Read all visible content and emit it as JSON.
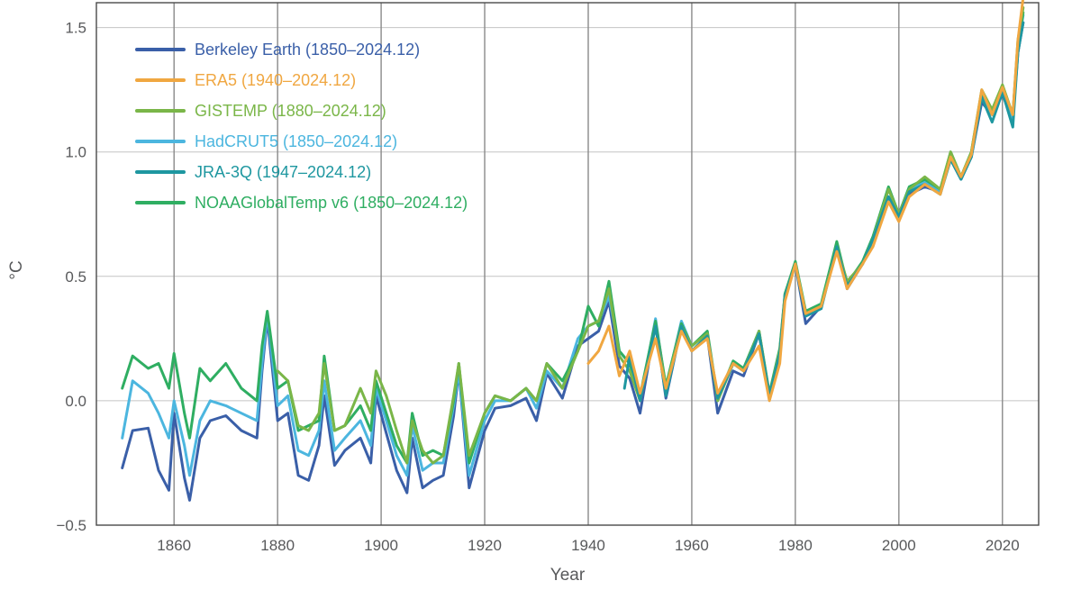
{
  "chart_data": {
    "type": "line",
    "xlabel": "Year",
    "ylabel": "°C",
    "xlim": [
      1845,
      2027
    ],
    "ylim": [
      -0.5,
      1.6
    ],
    "x_ticks": [
      {
        "value": 1860,
        "label": "1860"
      },
      {
        "value": 1880,
        "label": "1880"
      },
      {
        "value": 1900,
        "label": "1900"
      },
      {
        "value": 1920,
        "label": "1920"
      },
      {
        "value": 1940,
        "label": "1940"
      },
      {
        "value": 1960,
        "label": "1960"
      },
      {
        "value": 1980,
        "label": "1980"
      },
      {
        "value": 2000,
        "label": "2000"
      },
      {
        "value": 2020,
        "label": "2020"
      }
    ],
    "y_ticks": [
      {
        "value": -0.5,
        "label": "−0.5"
      },
      {
        "value": 0.0,
        "label": "0.0"
      },
      {
        "value": 0.5,
        "label": "0.5"
      },
      {
        "value": 1.0,
        "label": "1.0"
      },
      {
        "value": 1.5,
        "label": "1.5"
      }
    ],
    "grid": true,
    "legend_position": "top-left",
    "series": [
      {
        "name": "Berkeley Earth (1850–2024.12)",
        "color": "#3a5fa8",
        "x": [
          1850,
          1852,
          1855,
          1857,
          1859,
          1860,
          1862,
          1863,
          1865,
          1867,
          1870,
          1873,
          1876,
          1877,
          1878,
          1880,
          1882,
          1884,
          1886,
          1888,
          1889,
          1891,
          1893,
          1896,
          1898,
          1899,
          1901,
          1903,
          1905,
          1906,
          1908,
          1910,
          1912,
          1914,
          1915,
          1917,
          1920,
          1922,
          1925,
          1928,
          1930,
          1932,
          1935,
          1938,
          1940,
          1942,
          1944,
          1946,
          1948,
          1950,
          1953,
          1955,
          1958,
          1960,
          1963,
          1965,
          1968,
          1970,
          1973,
          1975,
          1977,
          1978,
          1980,
          1982,
          1985,
          1988,
          1990,
          1993,
          1995,
          1998,
          2000,
          2002,
          2005,
          2008,
          2010,
          2012,
          2014,
          2016,
          2018,
          2020,
          2022,
          2023,
          2024
        ],
        "y": [
          -0.27,
          -0.12,
          -0.11,
          -0.28,
          -0.36,
          -0.05,
          -0.31,
          -0.4,
          -0.15,
          -0.08,
          -0.06,
          -0.12,
          -0.15,
          0.12,
          0.33,
          -0.08,
          -0.05,
          -0.3,
          -0.32,
          -0.18,
          0.02,
          -0.26,
          -0.2,
          -0.15,
          -0.25,
          0.02,
          -0.13,
          -0.28,
          -0.37,
          -0.15,
          -0.35,
          -0.32,
          -0.3,
          -0.06,
          0.12,
          -0.35,
          -0.12,
          -0.03,
          -0.02,
          0.01,
          -0.08,
          0.11,
          0.01,
          0.22,
          0.25,
          0.28,
          0.4,
          0.14,
          0.09,
          -0.05,
          0.31,
          0.01,
          0.3,
          0.2,
          0.26,
          -0.05,
          0.12,
          0.1,
          0.27,
          0.02,
          0.19,
          0.43,
          0.55,
          0.31,
          0.38,
          0.62,
          0.45,
          0.55,
          0.65,
          0.82,
          0.74,
          0.83,
          0.86,
          0.84,
          0.97,
          0.89,
          0.98,
          1.2,
          1.15,
          1.23,
          1.13,
          1.4,
          1.52
        ]
      },
      {
        "name": "ERA5 (1940–2024.12)",
        "color": "#f0a741",
        "x": [
          1940,
          1942,
          1944,
          1946,
          1948,
          1950,
          1953,
          1955,
          1958,
          1960,
          1963,
          1965,
          1968,
          1970,
          1973,
          1975,
          1977,
          1978,
          1980,
          1982,
          1985,
          1988,
          1990,
          1993,
          1995,
          1998,
          2000,
          2002,
          2005,
          2008,
          2010,
          2012,
          2014,
          2016,
          2018,
          2020,
          2022,
          2023,
          2024
        ],
        "y": [
          0.15,
          0.2,
          0.3,
          0.1,
          0.2,
          0.03,
          0.25,
          0.05,
          0.28,
          0.2,
          0.25,
          0.03,
          0.15,
          0.12,
          0.22,
          0.0,
          0.15,
          0.4,
          0.55,
          0.35,
          0.38,
          0.6,
          0.45,
          0.55,
          0.62,
          0.8,
          0.72,
          0.82,
          0.87,
          0.83,
          0.98,
          0.9,
          0.99,
          1.25,
          1.15,
          1.26,
          1.15,
          1.45,
          1.62
        ]
      },
      {
        "name": "GISTEMP (1880–2024.12)",
        "color": "#7ab648",
        "x": [
          1880,
          1882,
          1884,
          1886,
          1888,
          1889,
          1891,
          1893,
          1896,
          1898,
          1899,
          1901,
          1903,
          1905,
          1906,
          1908,
          1910,
          1912,
          1914,
          1915,
          1917,
          1920,
          1922,
          1925,
          1928,
          1930,
          1932,
          1935,
          1938,
          1940,
          1942,
          1944,
          1946,
          1948,
          1950,
          1953,
          1955,
          1958,
          1960,
          1963,
          1965,
          1968,
          1970,
          1973,
          1975,
          1977,
          1978,
          1980,
          1982,
          1985,
          1988,
          1990,
          1993,
          1995,
          1998,
          2000,
          2002,
          2005,
          2008,
          2010,
          2012,
          2014,
          2016,
          2018,
          2020,
          2022,
          2023,
          2024
        ],
        "y": [
          0.12,
          0.08,
          -0.1,
          -0.12,
          -0.05,
          0.15,
          -0.12,
          -0.1,
          0.05,
          -0.05,
          0.12,
          0.02,
          -0.12,
          -0.25,
          -0.08,
          -0.2,
          -0.25,
          -0.22,
          0.02,
          0.15,
          -0.22,
          -0.05,
          0.02,
          0.0,
          0.05,
          0.0,
          0.15,
          0.05,
          0.2,
          0.3,
          0.32,
          0.45,
          0.18,
          0.12,
          0.0,
          0.3,
          0.05,
          0.3,
          0.22,
          0.27,
          0.0,
          0.15,
          0.12,
          0.28,
          0.02,
          0.2,
          0.42,
          0.55,
          0.35,
          0.38,
          0.62,
          0.48,
          0.55,
          0.65,
          0.85,
          0.75,
          0.85,
          0.9,
          0.85,
          1.0,
          0.9,
          1.0,
          1.25,
          1.17,
          1.27,
          1.15,
          1.45,
          1.58
        ]
      },
      {
        "name": "HadCRUT5 (1850–2024.12)",
        "color": "#4cb6df",
        "x": [
          1850,
          1852,
          1855,
          1857,
          1859,
          1860,
          1862,
          1863,
          1865,
          1867,
          1870,
          1873,
          1876,
          1877,
          1878,
          1880,
          1882,
          1884,
          1886,
          1888,
          1889,
          1891,
          1893,
          1896,
          1898,
          1899,
          1901,
          1903,
          1905,
          1906,
          1908,
          1910,
          1912,
          1914,
          1915,
          1917,
          1920,
          1922,
          1925,
          1928,
          1930,
          1932,
          1935,
          1938,
          1940,
          1942,
          1944,
          1946,
          1948,
          1950,
          1953,
          1955,
          1958,
          1960,
          1963,
          1965,
          1968,
          1970,
          1973,
          1975,
          1977,
          1978,
          1980,
          1982,
          1985,
          1988,
          1990,
          1993,
          1995,
          1998,
          2000,
          2002,
          2005,
          2008,
          2010,
          2012,
          2014,
          2016,
          2018,
          2020,
          2022,
          2023,
          2024
        ],
        "y": [
          -0.15,
          0.08,
          0.03,
          -0.05,
          -0.15,
          0.0,
          -0.18,
          -0.3,
          -0.08,
          0.0,
          -0.02,
          -0.05,
          -0.08,
          0.15,
          0.35,
          -0.02,
          0.02,
          -0.2,
          -0.22,
          -0.12,
          0.08,
          -0.2,
          -0.15,
          -0.08,
          -0.18,
          0.05,
          -0.08,
          -0.22,
          -0.3,
          -0.1,
          -0.28,
          -0.25,
          -0.25,
          -0.02,
          0.12,
          -0.3,
          -0.08,
          0.0,
          0.0,
          0.05,
          -0.03,
          0.12,
          0.05,
          0.25,
          0.3,
          0.32,
          0.42,
          0.2,
          0.15,
          0.0,
          0.33,
          0.05,
          0.32,
          0.22,
          0.27,
          0.0,
          0.15,
          0.12,
          0.28,
          0.02,
          0.2,
          0.42,
          0.55,
          0.35,
          0.38,
          0.63,
          0.47,
          0.56,
          0.66,
          0.85,
          0.75,
          0.85,
          0.88,
          0.84,
          0.98,
          0.9,
          0.99,
          1.23,
          1.15,
          1.25,
          1.13,
          1.42,
          1.55
        ]
      },
      {
        "name": "JRA-3Q (1947–2024.12)",
        "color": "#1e97a0",
        "x": [
          1947,
          1948,
          1950,
          1953,
          1955,
          1958,
          1960,
          1963,
          1965,
          1968,
          1970,
          1973,
          1975,
          1977,
          1978,
          1980,
          1982,
          1985,
          1988,
          1990,
          1993,
          1995,
          1998,
          2000,
          2002,
          2005,
          2008,
          2010,
          2012,
          2014,
          2016,
          2018,
          2020,
          2022,
          2023,
          2024
        ],
        "y": [
          0.05,
          0.18,
          0.0,
          0.3,
          0.02,
          0.3,
          0.2,
          0.26,
          0.01,
          0.15,
          0.12,
          0.27,
          0.02,
          0.19,
          0.42,
          0.55,
          0.34,
          0.37,
          0.62,
          0.46,
          0.55,
          0.65,
          0.82,
          0.74,
          0.84,
          0.87,
          0.83,
          0.97,
          0.89,
          0.98,
          1.22,
          1.12,
          1.24,
          1.1,
          1.4,
          1.52
        ]
      },
      {
        "name": "NOAAGlobalTemp v6 (1850–2024.12)",
        "color": "#2fae62",
        "x": [
          1850,
          1852,
          1855,
          1857,
          1859,
          1860,
          1862,
          1863,
          1865,
          1867,
          1870,
          1873,
          1876,
          1877,
          1878,
          1880,
          1882,
          1884,
          1886,
          1888,
          1889,
          1891,
          1893,
          1896,
          1898,
          1899,
          1901,
          1903,
          1905,
          1906,
          1908,
          1910,
          1912,
          1914,
          1915,
          1917,
          1920,
          1922,
          1925,
          1928,
          1930,
          1932,
          1935,
          1938,
          1940,
          1942,
          1944,
          1946,
          1948,
          1950,
          1953,
          1955,
          1958,
          1960,
          1963,
          1965,
          1968,
          1970,
          1973,
          1975,
          1977,
          1978,
          1980,
          1982,
          1985,
          1988,
          1990,
          1993,
          1995,
          1998,
          2000,
          2002,
          2005,
          2008,
          2010,
          2012,
          2014,
          2016,
          2018,
          2020,
          2022,
          2023,
          2024
        ],
        "y": [
          0.05,
          0.18,
          0.13,
          0.15,
          0.05,
          0.19,
          -0.05,
          -0.15,
          0.13,
          0.08,
          0.15,
          0.05,
          0.0,
          0.22,
          0.36,
          0.05,
          0.08,
          -0.12,
          -0.1,
          -0.08,
          0.18,
          -0.12,
          -0.1,
          -0.02,
          -0.12,
          0.08,
          -0.05,
          -0.18,
          -0.25,
          -0.05,
          -0.22,
          -0.2,
          -0.22,
          0.0,
          0.15,
          -0.25,
          -0.05,
          0.02,
          0.0,
          0.05,
          0.0,
          0.15,
          0.08,
          0.2,
          0.38,
          0.3,
          0.48,
          0.2,
          0.15,
          0.02,
          0.32,
          0.06,
          0.31,
          0.22,
          0.28,
          0.01,
          0.16,
          0.13,
          0.28,
          0.03,
          0.21,
          0.43,
          0.56,
          0.36,
          0.39,
          0.64,
          0.47,
          0.56,
          0.66,
          0.86,
          0.75,
          0.86,
          0.89,
          0.85,
          1.0,
          0.9,
          1.0,
          1.24,
          1.17,
          1.26,
          1.15,
          1.43,
          1.56
        ]
      }
    ]
  }
}
